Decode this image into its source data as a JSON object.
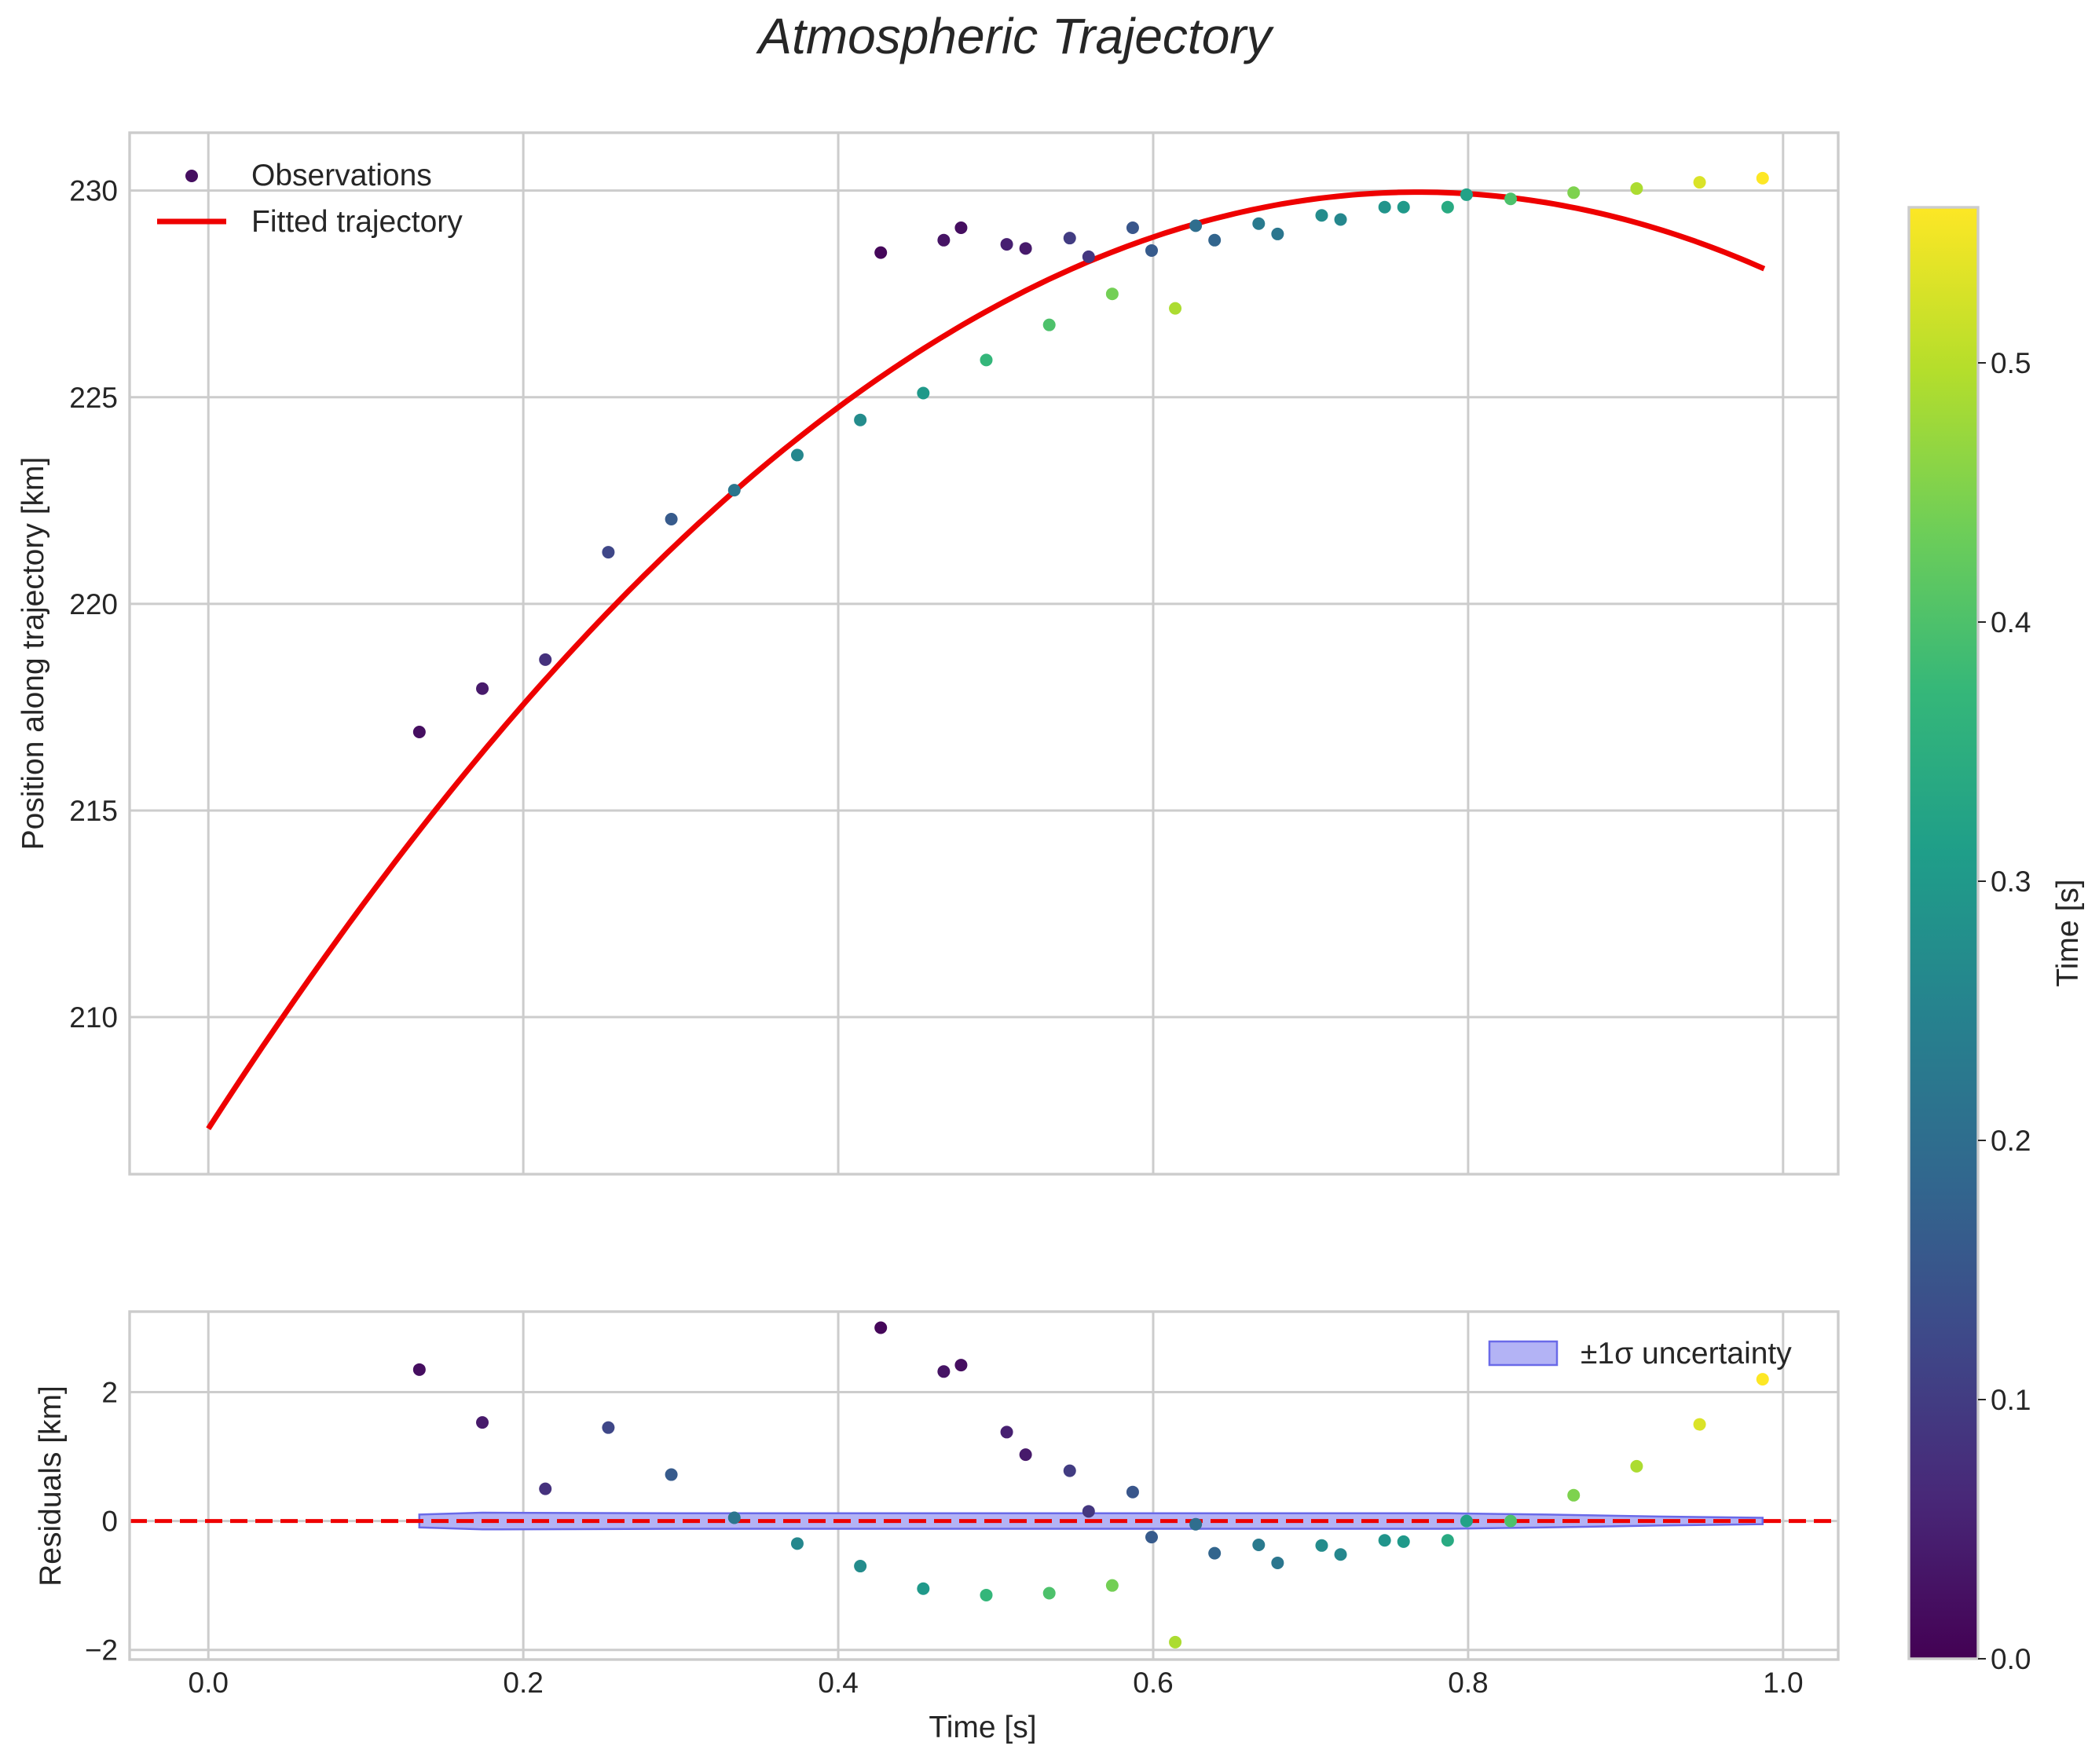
{
  "chart_data": {
    "type": "scatter",
    "title": "Atmospheric Trajectory",
    "colormap": "viridis",
    "colorbar": {
      "label": "Time [s]",
      "range": [
        0.0,
        0.56
      ],
      "ticks": [
        "0.0",
        "0.1",
        "0.2",
        "0.3",
        "0.4",
        "0.5"
      ]
    },
    "colors": {
      "fit_line": "#ee0000",
      "zero_line": "#ee0000",
      "band_fill": "#b3b3f5",
      "band_edge": "#6a6ae8",
      "grid": "#cccccc"
    },
    "top_panel": {
      "ylabel": "Position along trajectory [km]",
      "xlim": [
        -0.05,
        1.035
      ],
      "ylim": [
        206.2,
        231.4
      ],
      "yticks": [
        210,
        215,
        220,
        225,
        230
      ],
      "ytick_labels": [
        "210",
        "215",
        "220",
        "225",
        "230"
      ],
      "grid": true,
      "legend": {
        "position": "top-left",
        "entries": [
          "Observations",
          "Fitted trajectory"
        ]
      },
      "fit": {
        "label": "Fitted trajectory",
        "t_start": 0.0,
        "t_end": 0.988,
        "a": 207.3,
        "b": 59.0,
        "c": -38.4
      },
      "observations": [
        {
          "t": 0.134,
          "pos": 216.9,
          "c": 0.02
        },
        {
          "t": 0.174,
          "pos": 217.95,
          "c": 0.04
        },
        {
          "t": 0.214,
          "pos": 218.65,
          "c": 0.08
        },
        {
          "t": 0.254,
          "pos": 221.25,
          "c": 0.12
        },
        {
          "t": 0.294,
          "pos": 222.05,
          "c": 0.16
        },
        {
          "t": 0.334,
          "pos": 222.75,
          "c": 0.22
        },
        {
          "t": 0.374,
          "pos": 223.6,
          "c": 0.26
        },
        {
          "t": 0.414,
          "pos": 224.45,
          "c": 0.27
        },
        {
          "t": 0.427,
          "pos": 228.5,
          "c": 0.01
        },
        {
          "t": 0.454,
          "pos": 225.1,
          "c": 0.3
        },
        {
          "t": 0.467,
          "pos": 228.8,
          "c": 0.03
        },
        {
          "t": 0.478,
          "pos": 229.1,
          "c": 0.02
        },
        {
          "t": 0.494,
          "pos": 225.9,
          "c": 0.37
        },
        {
          "t": 0.507,
          "pos": 228.7,
          "c": 0.05
        },
        {
          "t": 0.519,
          "pos": 228.6,
          "c": 0.04
        },
        {
          "t": 0.534,
          "pos": 226.75,
          "c": 0.4
        },
        {
          "t": 0.547,
          "pos": 228.85,
          "c": 0.1
        },
        {
          "t": 0.559,
          "pos": 228.4,
          "c": 0.09
        },
        {
          "t": 0.574,
          "pos": 227.5,
          "c": 0.44
        },
        {
          "t": 0.587,
          "pos": 229.1,
          "c": 0.15
        },
        {
          "t": 0.599,
          "pos": 228.55,
          "c": 0.16
        },
        {
          "t": 0.614,
          "pos": 227.15,
          "c": 0.49
        },
        {
          "t": 0.627,
          "pos": 229.15,
          "c": 0.2
        },
        {
          "t": 0.639,
          "pos": 228.8,
          "c": 0.18
        },
        {
          "t": 0.667,
          "pos": 229.2,
          "c": 0.23
        },
        {
          "t": 0.679,
          "pos": 228.95,
          "c": 0.22
        },
        {
          "t": 0.707,
          "pos": 229.4,
          "c": 0.27
        },
        {
          "t": 0.719,
          "pos": 229.3,
          "c": 0.26
        },
        {
          "t": 0.747,
          "pos": 229.6,
          "c": 0.29
        },
        {
          "t": 0.759,
          "pos": 229.6,
          "c": 0.3
        },
        {
          "t": 0.787,
          "pos": 229.6,
          "c": 0.34
        },
        {
          "t": 0.799,
          "pos": 229.9,
          "c": 0.32
        },
        {
          "t": 0.827,
          "pos": 229.8,
          "c": 0.4
        },
        {
          "t": 0.867,
          "pos": 229.95,
          "c": 0.45
        },
        {
          "t": 0.907,
          "pos": 230.05,
          "c": 0.49
        },
        {
          "t": 0.947,
          "pos": 230.2,
          "c": 0.53
        },
        {
          "t": 0.987,
          "pos": 230.3,
          "c": 0.56
        }
      ]
    },
    "bottom_panel": {
      "ylabel": "Residuals [km]",
      "xlabel": "Time [s]",
      "xlim": [
        -0.05,
        1.035
      ],
      "ylim": [
        -2.15,
        3.25
      ],
      "yticks": [
        -2,
        0,
        2
      ],
      "ytick_labels": [
        "−2",
        "0",
        "2"
      ],
      "xticks": [
        0.0,
        0.2,
        0.4,
        0.6,
        0.8,
        1.0
      ],
      "xtick_labels": [
        "0.0",
        "0.2",
        "0.4",
        "0.6",
        "0.8",
        "1.0"
      ],
      "grid": true,
      "legend": {
        "position": "top-right",
        "entries": [
          "±1σ uncertainty"
        ]
      },
      "zero_line": 0,
      "band": {
        "label": "±1σ uncertainty",
        "t": [
          0.134,
          0.174,
          0.3,
          0.5,
          0.7,
          0.787,
          0.85,
          0.92,
          0.987
        ],
        "sigma": [
          0.1,
          0.13,
          0.12,
          0.12,
          0.12,
          0.12,
          0.1,
          0.07,
          0.05
        ]
      },
      "residuals": [
        {
          "t": 0.134,
          "r": 2.35,
          "c": 0.02
        },
        {
          "t": 0.174,
          "r": 1.53,
          "c": 0.04
        },
        {
          "t": 0.214,
          "r": 0.5,
          "c": 0.08
        },
        {
          "t": 0.254,
          "r": 1.45,
          "c": 0.12
        },
        {
          "t": 0.294,
          "r": 0.72,
          "c": 0.16
        },
        {
          "t": 0.334,
          "r": 0.05,
          "c": 0.22
        },
        {
          "t": 0.374,
          "r": -0.35,
          "c": 0.26
        },
        {
          "t": 0.414,
          "r": -0.7,
          "c": 0.27
        },
        {
          "t": 0.427,
          "r": 3.0,
          "c": 0.01
        },
        {
          "t": 0.454,
          "r": -1.05,
          "c": 0.3
        },
        {
          "t": 0.467,
          "r": 2.32,
          "c": 0.03
        },
        {
          "t": 0.478,
          "r": 2.42,
          "c": 0.02
        },
        {
          "t": 0.494,
          "r": -1.15,
          "c": 0.37
        },
        {
          "t": 0.507,
          "r": 1.38,
          "c": 0.05
        },
        {
          "t": 0.519,
          "r": 1.03,
          "c": 0.04
        },
        {
          "t": 0.534,
          "r": -1.12,
          "c": 0.4
        },
        {
          "t": 0.547,
          "r": 0.78,
          "c": 0.1
        },
        {
          "t": 0.559,
          "r": 0.15,
          "c": 0.09
        },
        {
          "t": 0.574,
          "r": -1.0,
          "c": 0.44
        },
        {
          "t": 0.587,
          "r": 0.45,
          "c": 0.15
        },
        {
          "t": 0.599,
          "r": -0.25,
          "c": 0.16
        },
        {
          "t": 0.614,
          "r": -1.88,
          "c": 0.49
        },
        {
          "t": 0.627,
          "r": -0.05,
          "c": 0.2
        },
        {
          "t": 0.639,
          "r": -0.5,
          "c": 0.18
        },
        {
          "t": 0.667,
          "r": -0.37,
          "c": 0.23
        },
        {
          "t": 0.679,
          "r": -0.65,
          "c": 0.22
        },
        {
          "t": 0.707,
          "r": -0.38,
          "c": 0.27
        },
        {
          "t": 0.719,
          "r": -0.52,
          "c": 0.26
        },
        {
          "t": 0.747,
          "r": -0.3,
          "c": 0.29
        },
        {
          "t": 0.759,
          "r": -0.32,
          "c": 0.3
        },
        {
          "t": 0.787,
          "r": -0.3,
          "c": 0.34
        },
        {
          "t": 0.799,
          "r": 0.0,
          "c": 0.32
        },
        {
          "t": 0.827,
          "r": 0.0,
          "c": 0.4
        },
        {
          "t": 0.867,
          "r": 0.4,
          "c": 0.45
        },
        {
          "t": 0.907,
          "r": 0.85,
          "c": 0.49
        },
        {
          "t": 0.947,
          "r": 1.5,
          "c": 0.53
        },
        {
          "t": 0.987,
          "r": 2.2,
          "c": 0.56
        }
      ]
    }
  }
}
